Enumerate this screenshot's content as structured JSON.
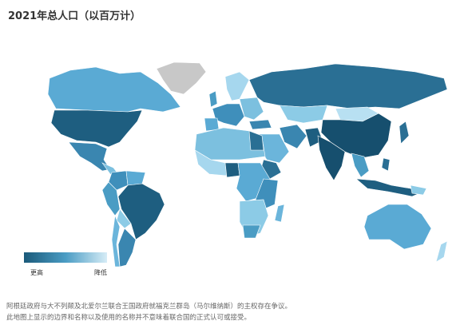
{
  "header": {
    "title": "2021年总人口（以百万计）"
  },
  "legend": {
    "high": "更高",
    "low": "降低"
  },
  "footnotes": [
    "阿根廷政府与大不列颠及北爱尔兰联合王国政府就福克兰群岛（马尔维纳斯）的主权存在争议。",
    "此地图上显示的边界和名称以及使用的名称并不意味着联合国的正式认可或接受。"
  ]
}
